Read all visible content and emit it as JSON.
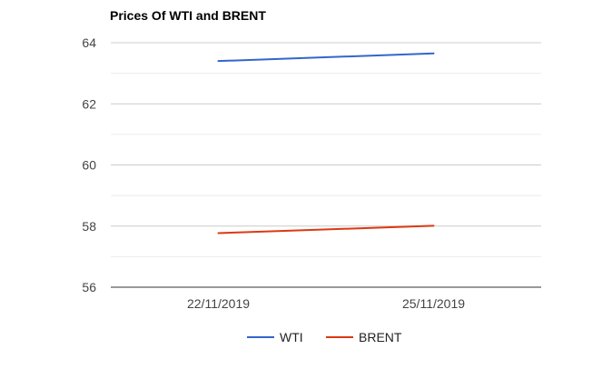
{
  "chart_data": {
    "type": "line",
    "title": "Prices Of WTI and BRENT",
    "categories": [
      "22/11/2019",
      "25/11/2019"
    ],
    "series": [
      {
        "name": "WTI",
        "values": [
          63.4,
          63.65
        ],
        "color": "#3366cc"
      },
      {
        "name": "BRENT",
        "values": [
          57.77,
          58.01
        ],
        "color": "#dc3912"
      }
    ],
    "ylim": [
      56,
      64
    ],
    "yticks": [
      "56",
      "58",
      "60",
      "62",
      "64"
    ],
    "grid": true,
    "legend_position": "bottom"
  }
}
